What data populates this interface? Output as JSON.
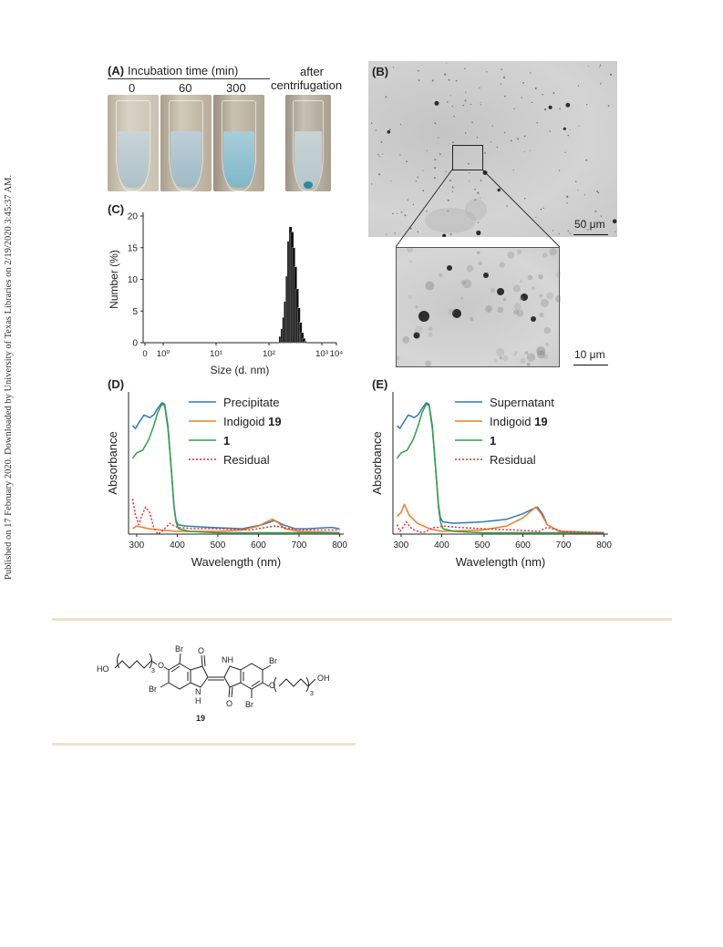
{
  "sidebar_text": "Published on 17 February 2020. Downloaded by University of Texas Libraries on 2/19/2020 3:45:37 AM.",
  "panel_a": {
    "label": "(A)",
    "header": "Incubation time (min)",
    "times": [
      "0",
      "60",
      "300"
    ],
    "after_line1": "after",
    "after_line2": "centrifugation"
  },
  "panel_b": {
    "label": "(B)",
    "scale_main": "50 μm",
    "scale_inset": "10 μm"
  },
  "panel_c": {
    "label": "(C)"
  },
  "panel_d": {
    "label": "(D)"
  },
  "panel_e": {
    "label": "(E)"
  },
  "scheme": {
    "compound_number": "19",
    "atoms": {
      "ho": "HO",
      "oh": "OH",
      "br": "Br",
      "o": "O",
      "nh": "NH",
      "h": "H",
      "n": "N",
      "sub3": "3"
    }
  },
  "chart_data": [
    {
      "type": "bar",
      "panel": "C",
      "xlabel": "Size (d. nm)",
      "ylabel": "Number (%)",
      "x_scale": "log",
      "x_ticks": [
        "0",
        "10⁰",
        "10¹",
        "10²",
        "10³",
        "10⁴"
      ],
      "y_ticks": [
        "0",
        "5",
        "10",
        "15",
        "20"
      ],
      "ylim": [
        0,
        20
      ],
      "x": [
        164,
        178,
        190,
        204,
        220,
        236,
        255,
        275,
        295,
        318,
        342,
        368,
        396,
        426,
        460,
        495
      ],
      "values": [
        1.0,
        2.2,
        4.0,
        6.5,
        10.5,
        16.0,
        18.3,
        17.5,
        15.0,
        12.0,
        8.5,
        5.5,
        3.2,
        1.6,
        0.7,
        0.2
      ],
      "bar_color": "#111111"
    },
    {
      "type": "line",
      "panel": "D",
      "xlabel": "Wavelength (nm)",
      "ylabel": "Absorbance",
      "xlim": [
        280,
        810
      ],
      "ylim": [
        0,
        1.05
      ],
      "x_ticks": [
        300,
        400,
        500,
        600,
        700,
        800
      ],
      "series": [
        {
          "name": "Precipitate",
          "color": "#2e7bb6",
          "dash": "solid",
          "x": [
            290,
            297,
            305,
            318,
            332,
            342,
            352,
            362,
            369,
            377,
            386,
            392,
            397,
            402,
            420,
            480,
            560,
            610,
            640,
            660,
            690,
            720,
            780,
            800
          ],
          "y": [
            0.8,
            0.78,
            0.82,
            0.88,
            0.86,
            0.88,
            0.93,
            0.97,
            0.96,
            0.8,
            0.45,
            0.2,
            0.1,
            0.07,
            0.06,
            0.05,
            0.04,
            0.07,
            0.1,
            0.07,
            0.04,
            0.04,
            0.05,
            0.04
          ]
        },
        {
          "name": "Indigoid 19",
          "color": "#f07e27",
          "dash": "solid",
          "x": [
            290,
            300,
            315,
            330,
            360,
            400,
            500,
            560,
            600,
            620,
            635,
            650,
            665,
            700,
            800
          ],
          "y": [
            0.04,
            0.06,
            0.05,
            0.04,
            0.03,
            0.02,
            0.02,
            0.03,
            0.06,
            0.09,
            0.11,
            0.08,
            0.04,
            0.02,
            0.01
          ]
        },
        {
          "name": "1",
          "color": "#2ea043",
          "dash": "solid",
          "x": [
            290,
            300,
            315,
            330,
            342,
            352,
            362,
            369,
            377,
            386,
            392,
            397,
            403,
            430,
            500,
            800
          ],
          "y": [
            0.56,
            0.6,
            0.62,
            0.7,
            0.8,
            0.9,
            0.96,
            0.95,
            0.78,
            0.45,
            0.2,
            0.09,
            0.04,
            0.02,
            0.01,
            0.01
          ]
        },
        {
          "name": "Residual",
          "color": "#e0303a",
          "dash": "dotted",
          "x": [
            290,
            297,
            305,
            313,
            322,
            332,
            342,
            352,
            362,
            372,
            382,
            392,
            402,
            440,
            500,
            580,
            640,
            660,
            700,
            800
          ],
          "y": [
            0.26,
            0.14,
            0.07,
            0.14,
            0.2,
            0.16,
            0.05,
            0.0,
            0.02,
            0.05,
            0.08,
            0.06,
            0.05,
            0.04,
            0.04,
            0.03,
            0.06,
            0.05,
            0.03,
            0.03
          ]
        }
      ]
    },
    {
      "type": "line",
      "panel": "E",
      "xlabel": "Wavelength (nm)",
      "ylabel": "Absorbance",
      "xlim": [
        280,
        810
      ],
      "ylim": [
        0,
        1.05
      ],
      "x_ticks": [
        300,
        400,
        500,
        600,
        700,
        800
      ],
      "series": [
        {
          "name": "Supernatant",
          "color": "#2e7bb6",
          "dash": "solid",
          "x": [
            290,
            297,
            305,
            318,
            332,
            342,
            352,
            362,
            369,
            377,
            386,
            392,
            397,
            403,
            430,
            500,
            560,
            600,
            620,
            636,
            648,
            660,
            690,
            720,
            800
          ],
          "y": [
            0.8,
            0.78,
            0.82,
            0.88,
            0.86,
            0.88,
            0.93,
            0.97,
            0.96,
            0.8,
            0.45,
            0.22,
            0.12,
            0.09,
            0.08,
            0.09,
            0.11,
            0.15,
            0.18,
            0.2,
            0.15,
            0.07,
            0.02,
            0.01,
            0.01
          ]
        },
        {
          "name": "Indigoid 19",
          "color": "#f07e27",
          "dash": "solid",
          "x": [
            290,
            300,
            308,
            320,
            340,
            370,
            400,
            500,
            560,
            600,
            620,
            632,
            645,
            660,
            690,
            800
          ],
          "y": [
            0.13,
            0.16,
            0.22,
            0.14,
            0.08,
            0.04,
            0.02,
            0.03,
            0.06,
            0.12,
            0.17,
            0.2,
            0.15,
            0.07,
            0.02,
            0.01
          ]
        },
        {
          "name": "1",
          "color": "#2ea043",
          "dash": "solid",
          "x": [
            290,
            300,
            315,
            330,
            342,
            352,
            362,
            369,
            377,
            386,
            392,
            397,
            403,
            430,
            500,
            800
          ],
          "y": [
            0.56,
            0.6,
            0.62,
            0.7,
            0.8,
            0.9,
            0.96,
            0.95,
            0.78,
            0.45,
            0.2,
            0.09,
            0.04,
            0.02,
            0.01,
            0.01
          ]
        },
        {
          "name": "Residual",
          "color": "#e0303a",
          "dash": "dotted",
          "x": [
            290,
            297,
            305,
            313,
            322,
            332,
            342,
            352,
            362,
            372,
            382,
            392,
            402,
            440,
            500,
            580,
            640,
            660,
            700,
            800
          ],
          "y": [
            0.07,
            0.02,
            0.05,
            0.09,
            0.05,
            0.03,
            0.02,
            0.01,
            0.02,
            0.04,
            0.05,
            0.05,
            0.06,
            0.05,
            0.04,
            0.03,
            0.02,
            0.05,
            0.02,
            0.01
          ]
        }
      ]
    }
  ]
}
